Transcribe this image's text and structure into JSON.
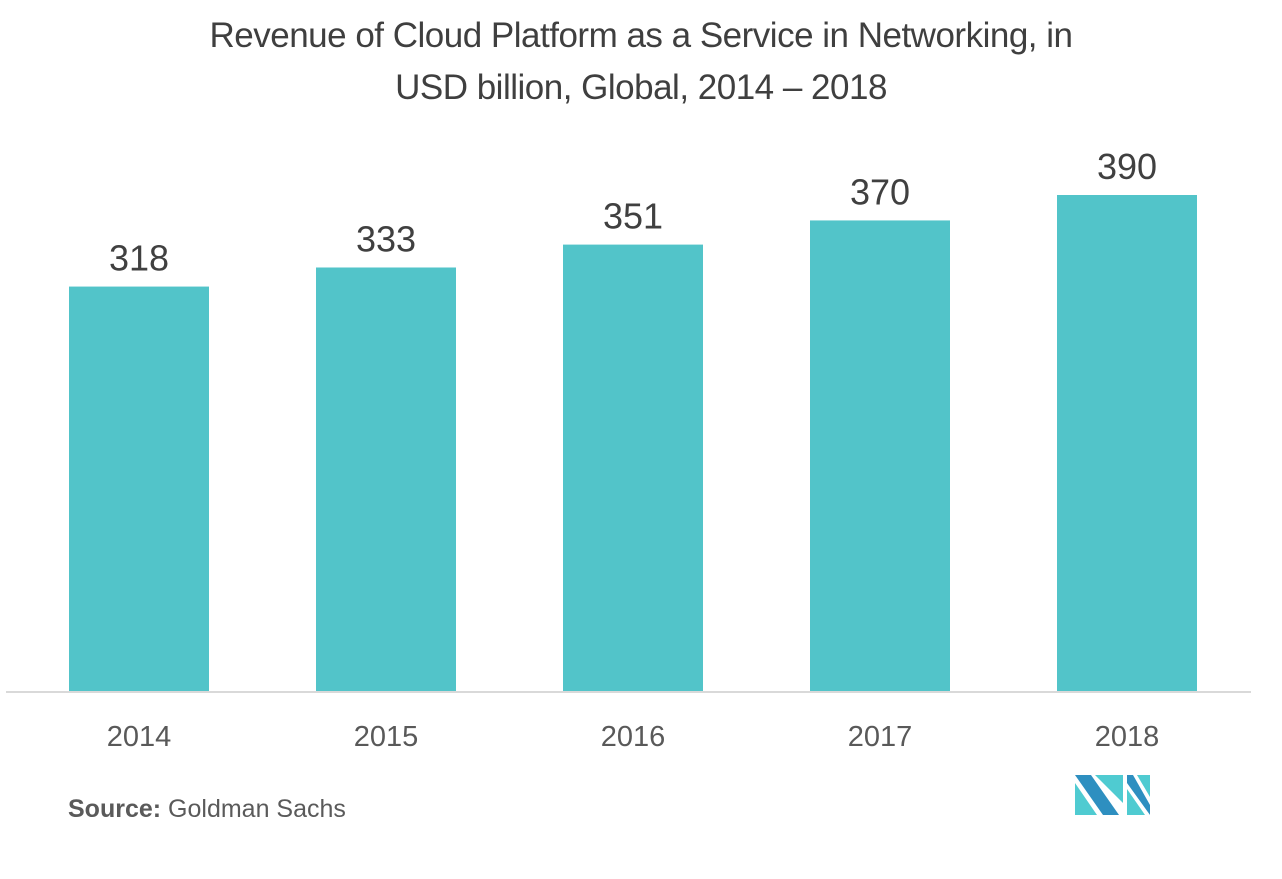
{
  "chart_data": {
    "type": "bar",
    "title": "Revenue of Cloud Platform as a Service in Networking, in USD billion, Global, 2014 – 2018",
    "title_lines": [
      "Revenue of Cloud Platform as a Service in Networking, in",
      "USD billion, Global, 2014 – 2018"
    ],
    "categories": [
      "2014",
      "2015",
      "2016",
      "2017",
      "2018"
    ],
    "values": [
      318,
      333,
      351,
      370,
      390
    ],
    "data_labels": [
      "318",
      "333",
      "351",
      "370",
      "390"
    ],
    "xlabel": "",
    "ylabel": "",
    "ylim": [
      0,
      390
    ],
    "grid": false,
    "legend": "none",
    "bar_color": "#52c4c9",
    "axis_color": "#d9d9d9",
    "label_color": "#404040",
    "tick_color": "#595959"
  },
  "footer": {
    "source_label": "Source:",
    "source_value": "Goldman Sachs"
  },
  "logo": {
    "icon": "mordor-intelligence-logo-icon",
    "colors": [
      "#2e8fc0",
      "#4fcbd1"
    ]
  }
}
